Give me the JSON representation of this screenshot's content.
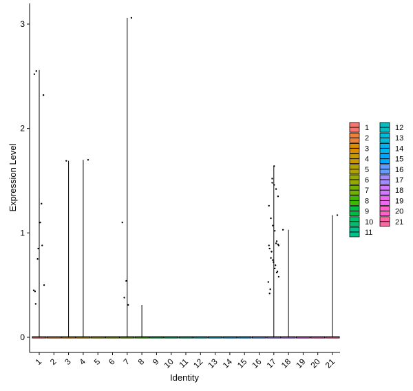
{
  "chart_data": {
    "type": "violin",
    "title": "",
    "xlabel": "Identity",
    "ylabel": "Expression Level",
    "ylim": [
      -0.14,
      3.22
    ],
    "yticks": [
      0,
      1,
      2,
      3
    ],
    "grid": false,
    "legend_position": "right",
    "categories": [
      "1",
      "2",
      "3",
      "4",
      "5",
      "6",
      "7",
      "8",
      "9",
      "10",
      "11",
      "12",
      "13",
      "14",
      "15",
      "16",
      "17",
      "18",
      "19",
      "20",
      "21"
    ],
    "colors": [
      "#F8766D",
      "#EC8239",
      "#DB8E00",
      "#C79800",
      "#AFA100",
      "#94AA00",
      "#72B000",
      "#3DB700",
      "#00BB44",
      "#00BE6C",
      "#00C08C",
      "#00BFC4",
      "#00BBDA",
      "#00B4EF",
      "#00A9FF",
      "#619CFF",
      "#A58AFF",
      "#D078FF",
      "#ED68ED",
      "#FF61C9",
      "#FF67A4"
    ],
    "series": [
      {
        "name": "1",
        "max": 2.56,
        "points": [
          0.45,
          0.32,
          0.75,
          1.1,
          1.28,
          2.32,
          2.52,
          2.55,
          0.85,
          1.1,
          0.88,
          0.5,
          0.44
        ]
      },
      {
        "name": "2",
        "max": 0,
        "points": []
      },
      {
        "name": "3",
        "max": 1.69,
        "points": [
          1.69
        ]
      },
      {
        "name": "4",
        "max": 1.7,
        "points": [
          1.7
        ]
      },
      {
        "name": "5",
        "max": 0,
        "points": []
      },
      {
        "name": "6",
        "max": 0,
        "points": []
      },
      {
        "name": "7",
        "max": 3.06,
        "points": [
          3.06,
          1.1,
          0.38,
          0.54,
          0.31
        ]
      },
      {
        "name": "8",
        "max": 0.31,
        "points": []
      },
      {
        "name": "9",
        "max": 0,
        "points": []
      },
      {
        "name": "10",
        "max": 0,
        "points": []
      },
      {
        "name": "11",
        "max": 0,
        "points": []
      },
      {
        "name": "12",
        "max": 0,
        "points": []
      },
      {
        "name": "13",
        "max": 0,
        "points": []
      },
      {
        "name": "14",
        "max": 0,
        "points": []
      },
      {
        "name": "15",
        "max": 0,
        "points": []
      },
      {
        "name": "16",
        "max": 0,
        "points": []
      },
      {
        "name": "17",
        "max": 1.64,
        "points": [
          1.48,
          1.46,
          1.42,
          1.35,
          1.26,
          1.14,
          1.07,
          1.02,
          0.92,
          0.88,
          0.85,
          0.82,
          0.72,
          0.69,
          0.63,
          0.53,
          0.46,
          1.52,
          1.64,
          0.9,
          0.89,
          0.88,
          0.76,
          0.74,
          0.66,
          0.62,
          0.58,
          0.42
        ]
      },
      {
        "name": "18",
        "max": 1.03,
        "points": [
          1.03
        ]
      },
      {
        "name": "19",
        "max": 0,
        "points": []
      },
      {
        "name": "20",
        "max": 0,
        "points": []
      },
      {
        "name": "21",
        "max": 1.17,
        "points": [
          1.17
        ]
      }
    ]
  }
}
